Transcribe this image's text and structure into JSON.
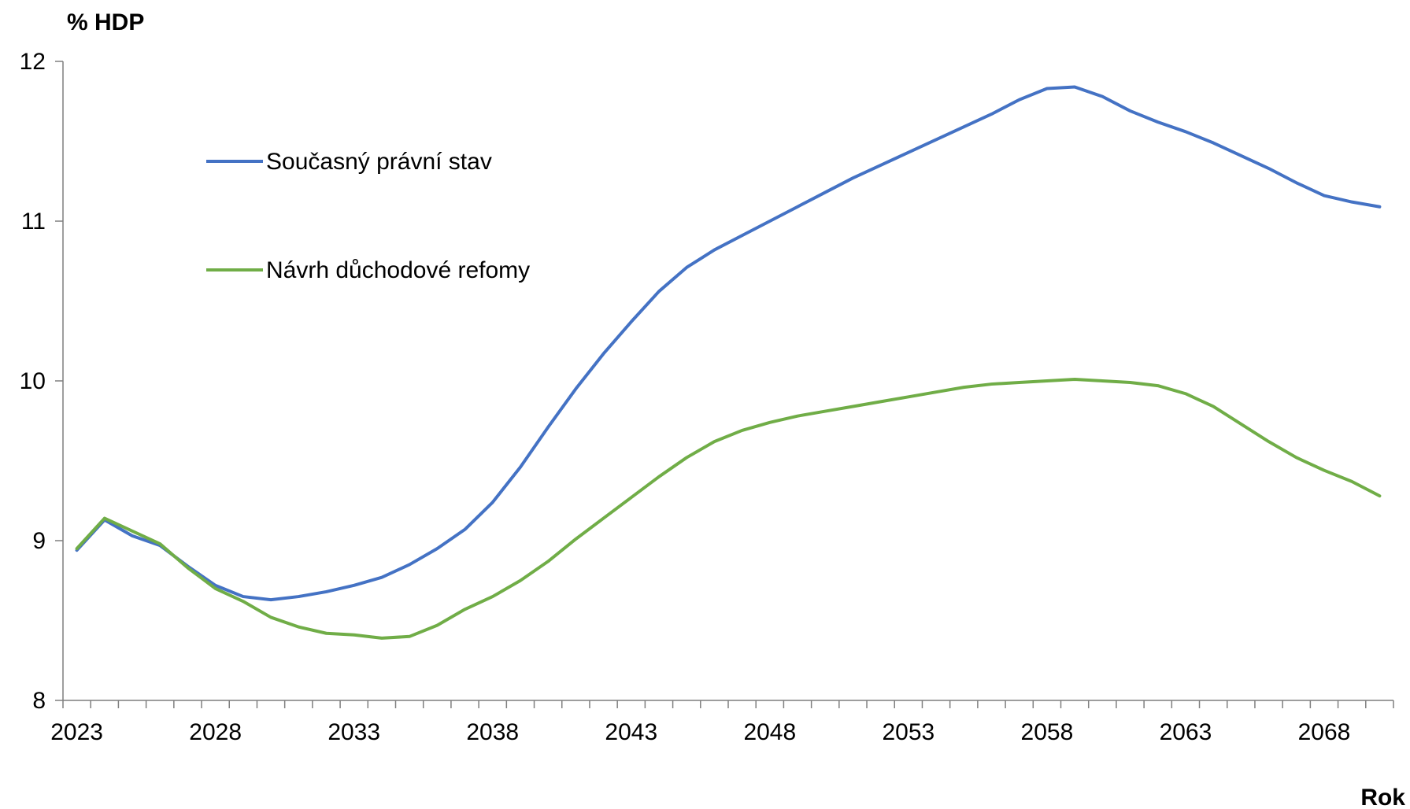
{
  "chart_data": {
    "type": "line",
    "ylabel": "% HDP",
    "xlabel": "Rok",
    "ylim": [
      8,
      12
    ],
    "yticks": [
      8,
      9,
      10,
      11,
      12
    ],
    "xlim": [
      2023,
      2070
    ],
    "xtick_labels": [
      2023,
      2028,
      2033,
      2038,
      2043,
      2048,
      2053,
      2058,
      2063,
      2068
    ],
    "grid": false,
    "legend_position": "top-left",
    "x": [
      2023,
      2024,
      2025,
      2026,
      2027,
      2028,
      2029,
      2030,
      2031,
      2032,
      2033,
      2034,
      2035,
      2036,
      2037,
      2038,
      2039,
      2040,
      2041,
      2042,
      2043,
      2044,
      2045,
      2046,
      2047,
      2048,
      2049,
      2050,
      2051,
      2052,
      2053,
      2054,
      2055,
      2056,
      2057,
      2058,
      2059,
      2060,
      2061,
      2062,
      2063,
      2064,
      2065,
      2066,
      2067,
      2068,
      2069,
      2070
    ],
    "series": [
      {
        "name": "Současný právní stav",
        "color": "#4472C4",
        "values": [
          8.94,
          9.13,
          9.03,
          8.97,
          8.84,
          8.72,
          8.65,
          8.63,
          8.65,
          8.68,
          8.72,
          8.77,
          8.85,
          8.95,
          9.07,
          9.24,
          9.46,
          9.71,
          9.95,
          10.17,
          10.37,
          10.56,
          10.71,
          10.82,
          10.91,
          11.0,
          11.09,
          11.18,
          11.27,
          11.35,
          11.43,
          11.51,
          11.59,
          11.67,
          11.76,
          11.83,
          11.84,
          11.78,
          11.69,
          11.62,
          11.56,
          11.49,
          11.41,
          11.33,
          11.24,
          11.16,
          11.12,
          11.09
        ]
      },
      {
        "name": "Návrh důchodové refomy",
        "color": "#70AD47",
        "values": [
          8.95,
          9.14,
          9.06,
          8.98,
          8.83,
          8.7,
          8.62,
          8.52,
          8.46,
          8.42,
          8.41,
          8.39,
          8.4,
          8.47,
          8.57,
          8.65,
          8.75,
          8.87,
          9.01,
          9.14,
          9.27,
          9.4,
          9.52,
          9.62,
          9.69,
          9.74,
          9.78,
          9.81,
          9.84,
          9.87,
          9.9,
          9.93,
          9.96,
          9.98,
          9.99,
          10.0,
          10.01,
          10.0,
          9.99,
          9.97,
          9.92,
          9.84,
          9.73,
          9.62,
          9.52,
          9.44,
          9.37,
          9.28
        ]
      }
    ]
  }
}
